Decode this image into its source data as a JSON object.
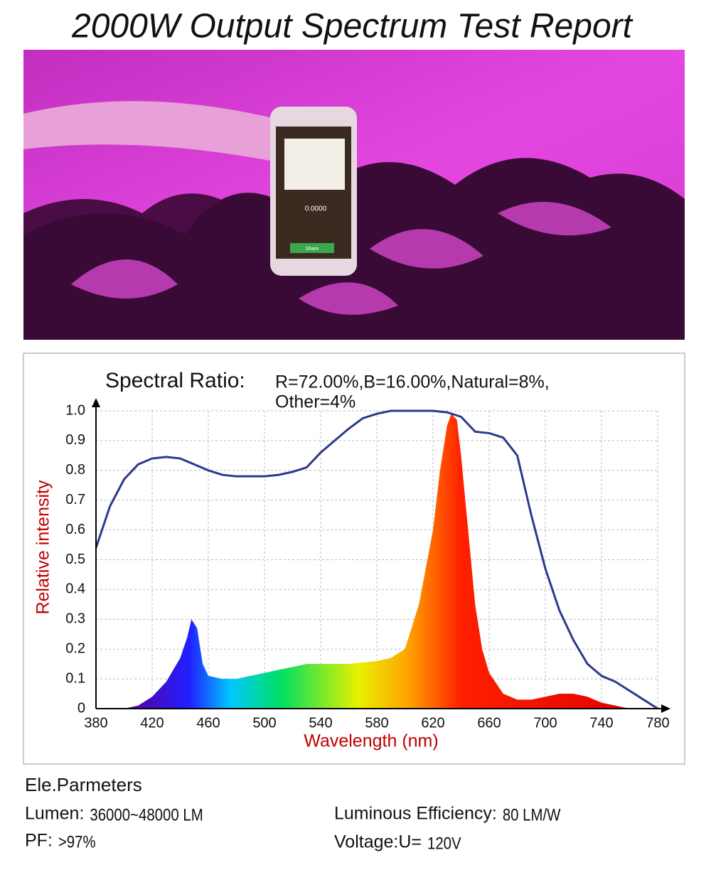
{
  "title": "2000W Output Spectrum Test Report",
  "photo": {
    "screen_value": "0.0000",
    "button": "Share"
  },
  "chart_data": {
    "type": "line",
    "title": "Spectral Ratio:",
    "subtitle": [
      "R=72.00%,B=16.00%,Natural=8%,",
      "Other=4%"
    ],
    "ylabel": "Relative intensity",
    "xlabel": "Wavelength (nm)",
    "xlim": [
      380,
      780
    ],
    "xticks": [
      380,
      420,
      460,
      500,
      540,
      580,
      620,
      660,
      700,
      740,
      780
    ],
    "ylim": [
      0,
      1
    ],
    "yticks": [
      0,
      0.1,
      0.2,
      0.3,
      0.4,
      0.5,
      0.6,
      0.7,
      0.8,
      0.9,
      {
        "value": 1,
        "label": "1.0"
      }
    ],
    "grid": true,
    "series": [
      {
        "color": "#2b3a8c",
        "x": [
          380,
          390,
          400,
          410,
          420,
          430,
          440,
          450,
          460,
          470,
          480,
          490,
          500,
          510,
          520,
          530,
          540,
          550,
          560,
          570,
          580,
          590,
          600,
          610,
          620,
          630,
          640,
          650,
          660,
          670,
          680,
          690,
          700,
          710,
          720,
          730,
          740,
          750,
          760,
          770,
          780
        ],
        "values": [
          0.54,
          0.68,
          0.77,
          0.82,
          0.84,
          0.845,
          0.84,
          0.82,
          0.8,
          0.785,
          0.78,
          0.78,
          0.78,
          0.785,
          0.795,
          0.81,
          0.86,
          0.9,
          0.94,
          0.975,
          0.99,
          1.0,
          1.0,
          1.0,
          1.0,
          0.995,
          0.98,
          0.93,
          0.925,
          0.91,
          0.85,
          0.65,
          0.47,
          0.33,
          0.23,
          0.15,
          0.11,
          0.09,
          0.06,
          0.03,
          0
        ]
      },
      {
        "color": "spectrum",
        "x": [
          400,
          410,
          420,
          430,
          440,
          445,
          448,
          452,
          456,
          460,
          470,
          480,
          490,
          500,
          510,
          520,
          530,
          540,
          560,
          580,
          590,
          600,
          610,
          620,
          625,
          630,
          633,
          637,
          640,
          645,
          650,
          655,
          660,
          670,
          680,
          690,
          700,
          710,
          720,
          730,
          740,
          750,
          760,
          780
        ],
        "values": [
          0,
          0.01,
          0.04,
          0.09,
          0.17,
          0.24,
          0.3,
          0.27,
          0.15,
          0.11,
          0.1,
          0.1,
          0.11,
          0.12,
          0.13,
          0.14,
          0.15,
          0.15,
          0.15,
          0.16,
          0.17,
          0.2,
          0.35,
          0.6,
          0.8,
          0.95,
          0.99,
          0.97,
          0.85,
          0.6,
          0.35,
          0.2,
          0.12,
          0.05,
          0.03,
          0.03,
          0.04,
          0.05,
          0.05,
          0.04,
          0.02,
          0.01,
          0,
          0
        ]
      }
    ]
  },
  "parameters": {
    "heading": "Ele.Parmeters",
    "items": [
      {
        "label": "Lumen:",
        "value": "36000~48000 LM"
      },
      {
        "label": "Luminous Efficiency:",
        "value": "80 LM/W"
      },
      {
        "label": "PF:",
        "value": ">97%"
      },
      {
        "label": "Voltage:U=",
        "value": "120V"
      }
    ]
  }
}
